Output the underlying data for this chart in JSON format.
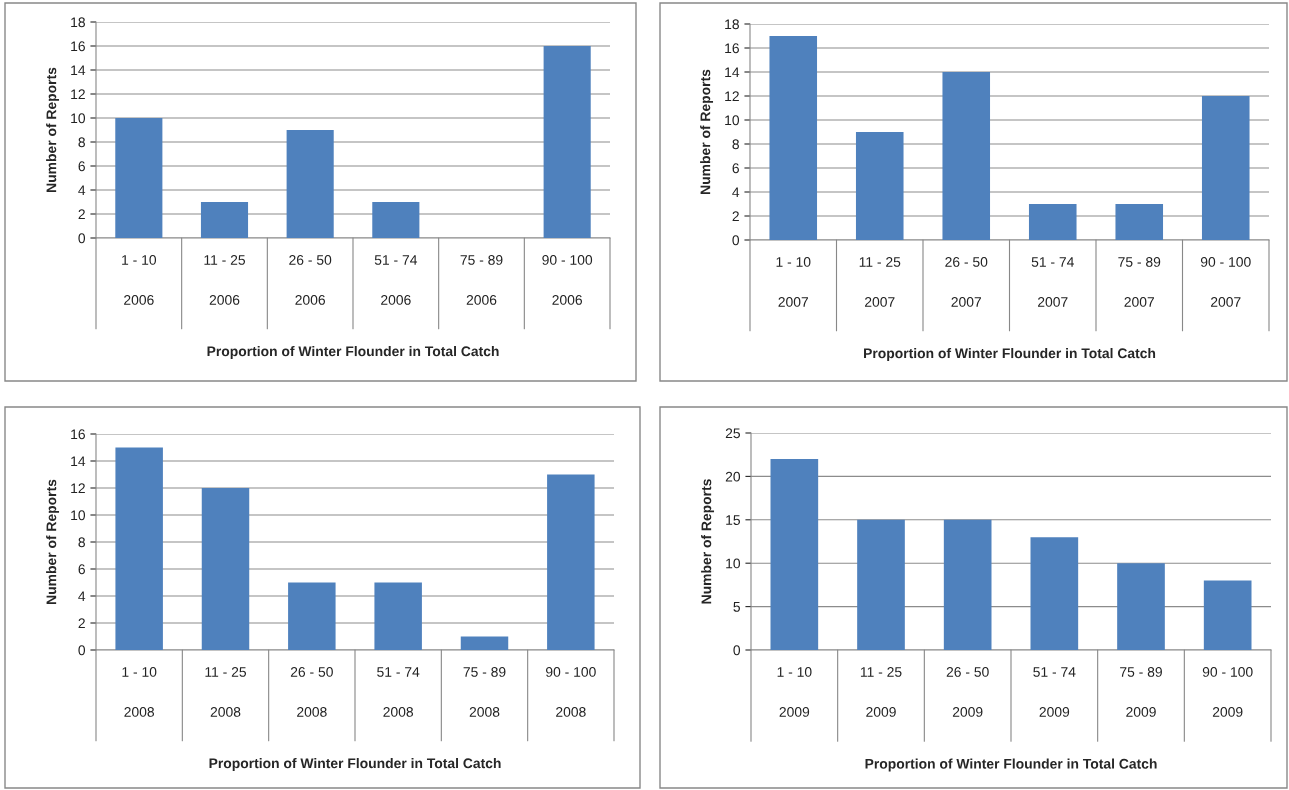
{
  "chart_data": [
    {
      "type": "bar",
      "categories": [
        "1 - 10\n\n2006",
        "11 - 25\n\n2006",
        "26 - 50\n\n2006",
        "51 - 74\n\n2006",
        "75 - 89\n\n2006",
        "90 - 100\n\n2006"
      ],
      "values": [
        10,
        3,
        9,
        3,
        0,
        16
      ],
      "color": "#4f81bd",
      "xlabel": "Proportion of Winter Flounder in Total Catch",
      "ylabel": "Number of Reports",
      "ylim": [
        0,
        18
      ],
      "yticks": [
        0,
        2,
        4,
        6,
        8,
        10,
        12,
        14,
        16,
        18
      ],
      "grid": "y"
    },
    {
      "type": "bar",
      "categories": [
        "1 - 10\n\n2007",
        "11 - 25\n\n2007",
        "26 - 50\n\n2007",
        "51 - 74\n\n2007",
        "75 - 89\n\n2007",
        "90 - 100\n\n2007"
      ],
      "values": [
        17,
        9,
        14,
        3,
        3,
        12
      ],
      "color": "#4f81bd",
      "xlabel": "Proportion of Winter Flounder in Total Catch",
      "ylabel": "Number of Reports",
      "ylim": [
        0,
        18
      ],
      "yticks": [
        0,
        2,
        4,
        6,
        8,
        10,
        12,
        14,
        16,
        18
      ],
      "grid": "y"
    },
    {
      "type": "bar",
      "categories": [
        "1 - 10\n\n2008",
        "11 - 25\n\n2008",
        "26 - 50\n\n2008",
        "51 - 74\n\n2008",
        "75 - 89\n\n2008",
        "90 - 100\n\n2008"
      ],
      "values": [
        15,
        12,
        5,
        5,
        1,
        13
      ],
      "color": "#4f81bd",
      "xlabel": "Proportion of Winter Flounder in Total Catch",
      "ylabel": "Number of Reports",
      "ylim": [
        0,
        16
      ],
      "yticks": [
        0,
        2,
        4,
        6,
        8,
        10,
        12,
        14,
        16
      ],
      "grid": "y"
    },
    {
      "type": "bar",
      "categories": [
        "1 - 10\n\n2009",
        "11 - 25\n\n2009",
        "26 - 50\n\n2009",
        "51 - 74\n\n2009",
        "75 - 89\n\n2009",
        "90 - 100\n\n2009"
      ],
      "values": [
        22,
        15,
        15,
        13,
        10,
        8
      ],
      "color": "#4f81bd",
      "xlabel": "Proportion of Winter Flounder in Total Catch",
      "ylabel": "Number of Reports",
      "ylim": [
        0,
        25
      ],
      "yticks": [
        0,
        5,
        10,
        15,
        20,
        25
      ],
      "grid": "y"
    }
  ]
}
